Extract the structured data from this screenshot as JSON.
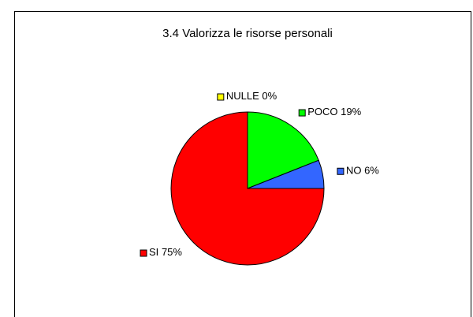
{
  "chart_data": {
    "type": "pie",
    "title": "3.4 Valorizza le risorse personali",
    "categories": [
      "NULLE",
      "POCO",
      "NO",
      "SI"
    ],
    "values": [
      0,
      19,
      6,
      75
    ],
    "value_labels": [
      "0%",
      "19%",
      "6%",
      "75%"
    ],
    "colors": [
      "#ffff00",
      "#00ff00",
      "#3366ff",
      "#ff0000"
    ]
  }
}
